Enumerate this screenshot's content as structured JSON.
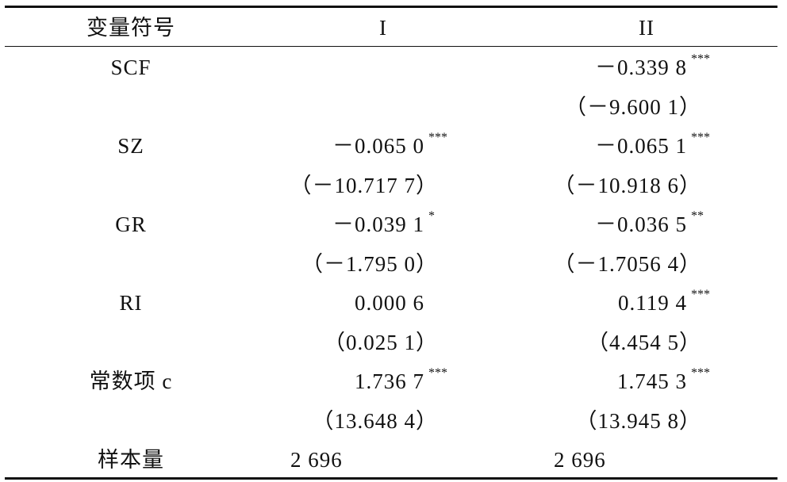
{
  "header": [
    "变量符号",
    "I",
    "II"
  ],
  "rows": [
    [
      "SCF",
      null,
      {
        "text": "－0.339 8",
        "sup": "***"
      }
    ],
    [
      null,
      null,
      "（－9.600 1）"
    ],
    [
      "SZ",
      {
        "text": "－0.065 0",
        "sup": "***"
      },
      {
        "text": "－0.065 1",
        "sup": "***"
      }
    ],
    [
      null,
      "（－10.717 7）",
      "（－10.918 6）"
    ],
    [
      "GR",
      {
        "text": "－0.039 1",
        "sup": "*"
      },
      {
        "text": "－0.036 5",
        "sup": "**"
      }
    ],
    [
      null,
      "（－1.795 0）",
      "（－1.7056 4）"
    ],
    [
      "RI",
      {
        "text": "0.000 6"
      },
      {
        "text": "0.119 4",
        "sup": "***"
      }
    ],
    [
      null,
      "（0.025 1）",
      "（4.454 5）"
    ],
    [
      "常数项 c",
      {
        "text": "1.736 7",
        "sup": "***"
      },
      {
        "text": "1.745 3",
        "sup": "***"
      }
    ],
    [
      null,
      "（13.648 4）",
      "（13.945 8）"
    ],
    [
      "样本量",
      "2 696",
      "2 696"
    ]
  ]
}
